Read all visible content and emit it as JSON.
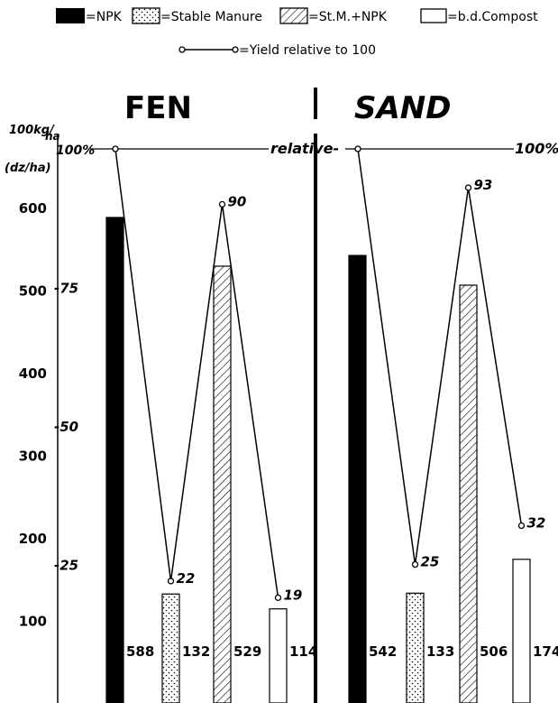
{
  "chart_data": {
    "type": "bar",
    "legend": [
      {
        "key": "npk",
        "label": "=NPK",
        "pattern": "solid"
      },
      {
        "key": "sm",
        "label": "=Stable Manure",
        "pattern": "dots"
      },
      {
        "key": "smnpk",
        "label": "=St.M.+NPK",
        "pattern": "hatch"
      },
      {
        "key": "bd",
        "label": "=b.d.Compost",
        "pattern": "empty"
      }
    ],
    "line_legend": "=Yield relative to 100",
    "y_unit_top": "100kg/",
    "y_unit_ha": "ha",
    "y_unit_bottom": "(dz/ha)",
    "y_ticks": [
      "100",
      "200",
      "300",
      "400",
      "500",
      "600"
    ],
    "y_tick_values": [
      100,
      200,
      300,
      400,
      500,
      600
    ],
    "ylim": [
      0,
      700
    ],
    "relative_ticks": [
      "-25",
      "-50",
      "-75",
      "100%"
    ],
    "relative_tick_values": [
      25,
      50,
      75,
      100
    ],
    "relative_right_label": "100%",
    "relative_center_label": "relative-",
    "panels": [
      {
        "title": "FEN",
        "values": [
          588,
          132,
          529,
          114
        ],
        "value_labels": [
          "588",
          "132",
          "529",
          "114"
        ],
        "relative": [
          100,
          22,
          90,
          19
        ],
        "relative_labels": [
          "",
          "22",
          "90",
          "19"
        ]
      },
      {
        "title": "SAND",
        "values": [
          542,
          133,
          506,
          174
        ],
        "value_labels": [
          "542",
          "133",
          "506",
          "174"
        ],
        "relative": [
          100,
          25,
          93,
          32
        ],
        "relative_labels": [
          "",
          "25",
          "93",
          "32"
        ]
      }
    ]
  }
}
